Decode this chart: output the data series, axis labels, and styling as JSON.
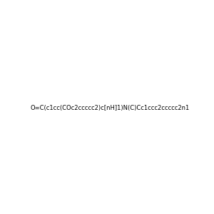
{
  "smiles": "O=C(c1cc(COc2ccccc2)c[nH]1)N(C)Cc1ccc2ccccc2n1",
  "title": "",
  "background_color": "#f0f0f0",
  "bond_color": "#000000",
  "heteroatom_colors": {
    "N": "#0000ff",
    "O": "#ff0000"
  },
  "figsize": [
    3.0,
    3.0
  ],
  "dpi": 100
}
